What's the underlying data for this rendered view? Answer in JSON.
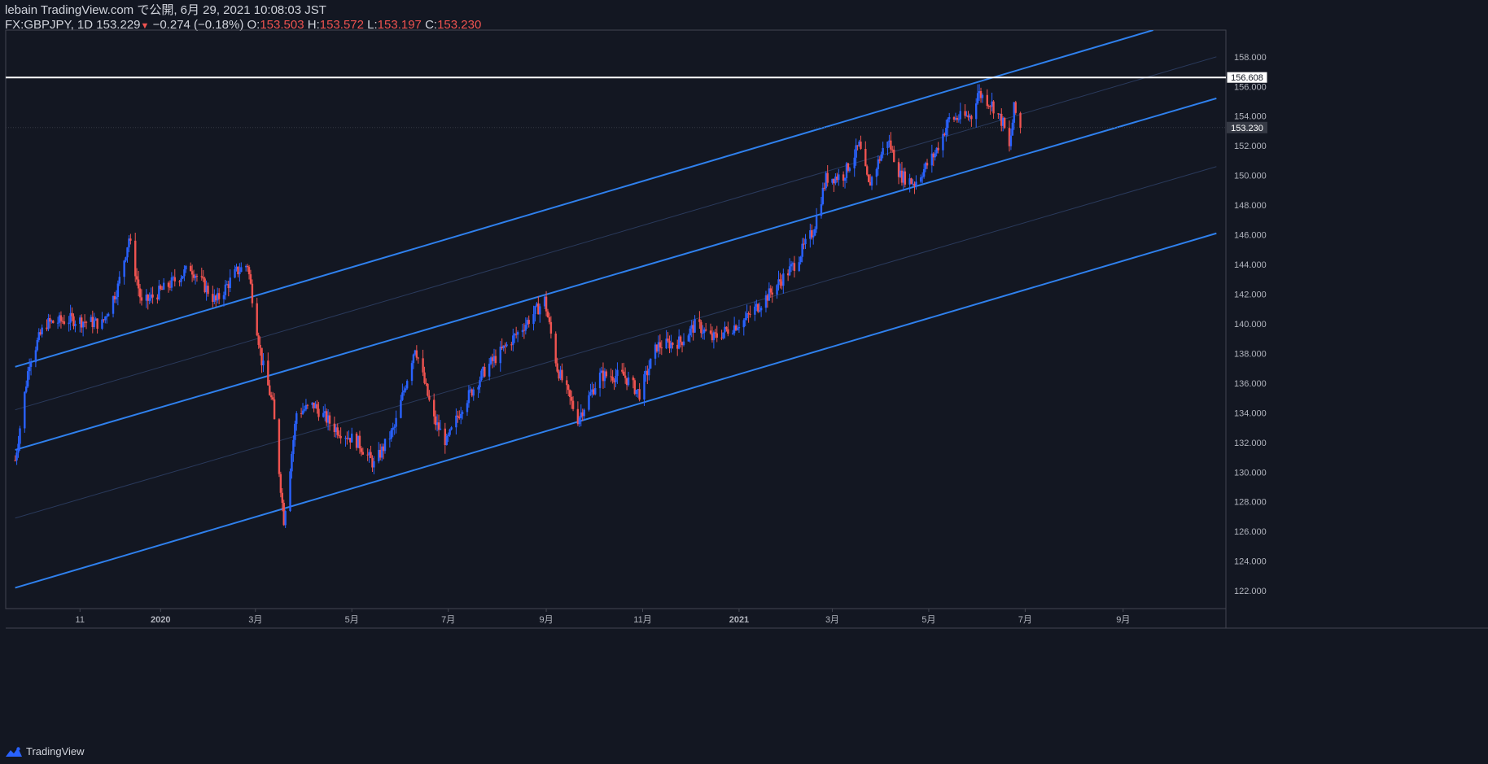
{
  "header": {
    "publish_line": "lebain TradingView.com で公開, 6月 29, 2021 10:08:03 JST",
    "symbol": "FX:GBPJPY, 1D",
    "last_price": "153.229",
    "change": "−0.274 (−0.18%)",
    "o_label": "O:",
    "o_value": "153.503",
    "h_label": "H:",
    "h_value": "153.572",
    "l_label": "L:",
    "l_value": "153.197",
    "c_label": "C:",
    "c_value": "153.230"
  },
  "footer": {
    "brand": "TradingView",
    "logo_icon": "tradingview-logo-icon"
  },
  "colors": {
    "background": "#131722",
    "up": "#2962ff",
    "down": "#ef5350",
    "channel": "#2f80ed",
    "hline": "#ffffff",
    "text": "#d1d4dc"
  },
  "chart_data": {
    "type": "candlestick",
    "y_axis": {
      "range": [
        120.8,
        159.8
      ],
      "ticks": [
        "158.000",
        "156.000",
        "154.000",
        "152.000",
        "150.000",
        "148.000",
        "146.000",
        "144.000",
        "142.000",
        "140.000",
        "138.000",
        "136.000",
        "134.000",
        "132.000",
        "130.000",
        "128.000",
        "126.000",
        "124.000",
        "122.000"
      ]
    },
    "x_axis": {
      "ticks": [
        "11",
        "2020",
        "3月",
        "5月",
        "7月",
        "9月",
        "11月",
        "2021",
        "3月",
        "5月",
        "7月",
        "9月"
      ]
    },
    "horizontal_line": {
      "value": 156.608,
      "label": "156.608"
    },
    "last_price_label": "153.230",
    "channel_lines": [
      {
        "name": "upper",
        "from": [
          "2019-10-01",
          137.1
        ],
        "to": [
          "2021-09-20",
          159.8
        ]
      },
      {
        "name": "middle",
        "from": [
          "2019-10-01",
          131.5
        ],
        "to": [
          "2021-10-30",
          155.2
        ]
      },
      {
        "name": "lower",
        "from": [
          "2019-10-01",
          122.2
        ],
        "to": [
          "2021-10-30",
          146.1
        ]
      }
    ],
    "guide_lines": [
      {
        "from": [
          "2019-10-01",
          134.2
        ],
        "to": [
          "2021-10-30",
          158.0
        ]
      },
      {
        "from": [
          "2019-10-01",
          126.9
        ],
        "to": [
          "2021-10-30",
          150.6
        ]
      }
    ],
    "price_path": [
      [
        "2019-10-01",
        130.8
      ],
      [
        "2019-10-10",
        137.5
      ],
      [
        "2019-10-20",
        140.0
      ],
      [
        "2019-11-05",
        140.3
      ],
      [
        "2019-11-25",
        140.0
      ],
      [
        "2019-12-05",
        142.5
      ],
      [
        "2019-12-12",
        145.8
      ],
      [
        "2019-12-20",
        141.3
      ],
      [
        "2020-01-05",
        142.5
      ],
      [
        "2020-01-20",
        143.8
      ],
      [
        "2020-02-05",
        141.5
      ],
      [
        "2020-02-18",
        143.5
      ],
      [
        "2020-02-25",
        144.0
      ],
      [
        "2020-03-05",
        137.5
      ],
      [
        "2020-03-12",
        134.5
      ],
      [
        "2020-03-19",
        126.8
      ],
      [
        "2020-03-27",
        134.0
      ],
      [
        "2020-04-07",
        134.5
      ],
      [
        "2020-04-20",
        133.0
      ],
      [
        "2020-05-05",
        132.0
      ],
      [
        "2020-05-15",
        130.5
      ],
      [
        "2020-05-28",
        133.0
      ],
      [
        "2020-06-10",
        138.5
      ],
      [
        "2020-06-22",
        133.5
      ],
      [
        "2020-06-30",
        132.0
      ],
      [
        "2020-07-10",
        134.5
      ],
      [
        "2020-07-25",
        137.0
      ],
      [
        "2020-08-15",
        139.5
      ],
      [
        "2020-08-31",
        141.6
      ],
      [
        "2020-09-08",
        137.0
      ],
      [
        "2020-09-21",
        133.6
      ],
      [
        "2020-10-05",
        136.5
      ],
      [
        "2020-10-20",
        136.5
      ],
      [
        "2020-10-30",
        135.3
      ],
      [
        "2020-11-10",
        138.5
      ],
      [
        "2020-11-25",
        138.8
      ],
      [
        "2020-12-05",
        140.0
      ],
      [
        "2020-12-15",
        139.0
      ],
      [
        "2021-01-05",
        140.3
      ],
      [
        "2021-01-20",
        142.0
      ],
      [
        "2021-02-05",
        144.0
      ],
      [
        "2021-02-17",
        146.3
      ],
      [
        "2021-02-25",
        149.8
      ],
      [
        "2021-03-08",
        150.0
      ],
      [
        "2021-03-18",
        152.0
      ],
      [
        "2021-03-24",
        149.3
      ],
      [
        "2021-04-05",
        152.5
      ],
      [
        "2021-04-13",
        150.0
      ],
      [
        "2021-04-22",
        149.5
      ],
      [
        "2021-05-05",
        151.5
      ],
      [
        "2021-05-14",
        153.8
      ],
      [
        "2021-05-28",
        154.0
      ],
      [
        "2021-06-01",
        155.6
      ],
      [
        "2021-06-10",
        154.8
      ],
      [
        "2021-06-17",
        153.5
      ],
      [
        "2021-06-21",
        151.8
      ],
      [
        "2021-06-24",
        154.5
      ],
      [
        "2021-06-28",
        153.23
      ]
    ]
  }
}
